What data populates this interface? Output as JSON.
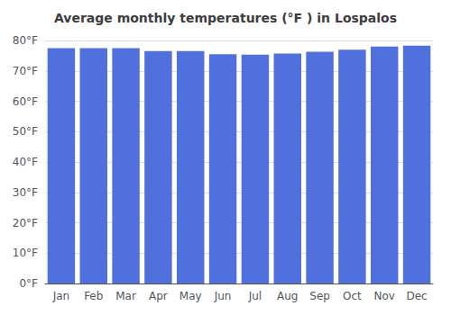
{
  "chart_data": {
    "type": "bar",
    "title": "Average monthly temperatures (°F ) in Lospalos",
    "categories": [
      "Jan",
      "Feb",
      "Mar",
      "Apr",
      "May",
      "Jun",
      "Jul",
      "Aug",
      "Sep",
      "Oct",
      "Nov",
      "Dec"
    ],
    "values": [
      77.5,
      77.5,
      77.5,
      76.5,
      76.5,
      75.5,
      75.3,
      75.7,
      76.3,
      77.0,
      78.0,
      78.3
    ],
    "ylim": [
      0,
      80
    ],
    "yticks": [
      {
        "value": 0,
        "label": "0°F"
      },
      {
        "value": 10,
        "label": "10°F"
      },
      {
        "value": 20,
        "label": "20°F"
      },
      {
        "value": 30,
        "label": "30°F"
      },
      {
        "value": 40,
        "label": "40°F"
      },
      {
        "value": 50,
        "label": "50°F"
      },
      {
        "value": 60,
        "label": "60°F"
      },
      {
        "value": 70,
        "label": "70°F"
      },
      {
        "value": 80,
        "label": "80°F"
      }
    ],
    "grid": true
  }
}
